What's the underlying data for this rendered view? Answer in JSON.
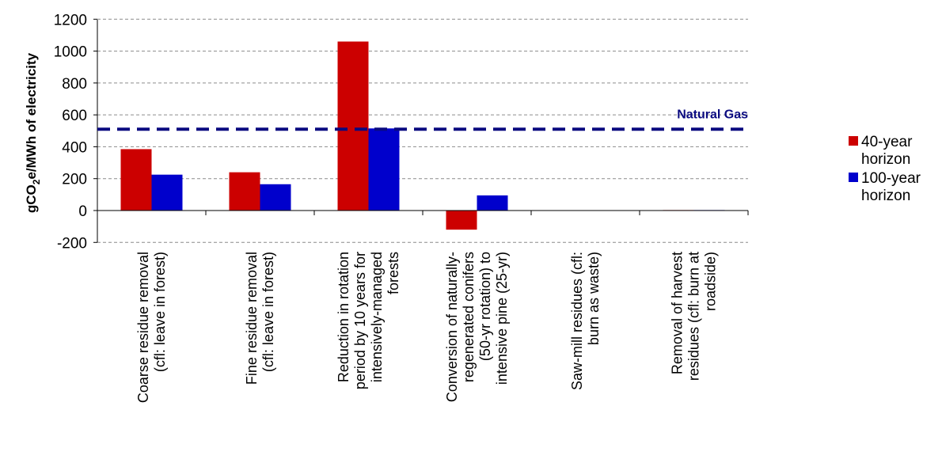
{
  "chart_data": {
    "type": "bar",
    "title": "",
    "xlabel": "",
    "ylabel": "gCO2e/MWh of electricity",
    "ylabel_parts": [
      "gCO",
      "2",
      "e/MWh of electricity"
    ],
    "ylim": [
      -200,
      1200
    ],
    "yticks": [
      -200,
      0,
      200,
      400,
      600,
      800,
      1000,
      1200
    ],
    "ytick_labels": [
      "-200",
      "0",
      "200",
      "400",
      "600",
      "800",
      "1000",
      "1200"
    ],
    "grid": true,
    "legend_position": "right",
    "categories": [
      [
        "Coarse residue removal",
        "(cfl: leave in forest)"
      ],
      [
        "Fine residue removal",
        "(cfl: leave in forest)"
      ],
      [
        "Reduction in rotation",
        "period by 10 years for",
        "intensively-managed",
        "forests"
      ],
      [
        "Conversion of naturally-",
        "regenerated conifers",
        "(50-yr rotation) to",
        "intensive pine (25-yr)"
      ],
      [
        "Saw-mill residues (cfl:",
        "burn as waste)"
      ],
      [
        "Removal of harvest",
        "residues (cfl: burn at",
        "roadside)"
      ]
    ],
    "series": [
      {
        "name": [
          "40-year",
          "horizon"
        ],
        "color": "#cc0000",
        "values": [
          385,
          240,
          1060,
          -120,
          0,
          3
        ]
      },
      {
        "name": [
          "100-year",
          "horizon"
        ],
        "color": "#0000cc",
        "values": [
          225,
          165,
          515,
          95,
          0,
          3
        ]
      }
    ],
    "reference_line": {
      "label": "Natural Gas",
      "value": 510,
      "color": "#0a0a80"
    }
  }
}
